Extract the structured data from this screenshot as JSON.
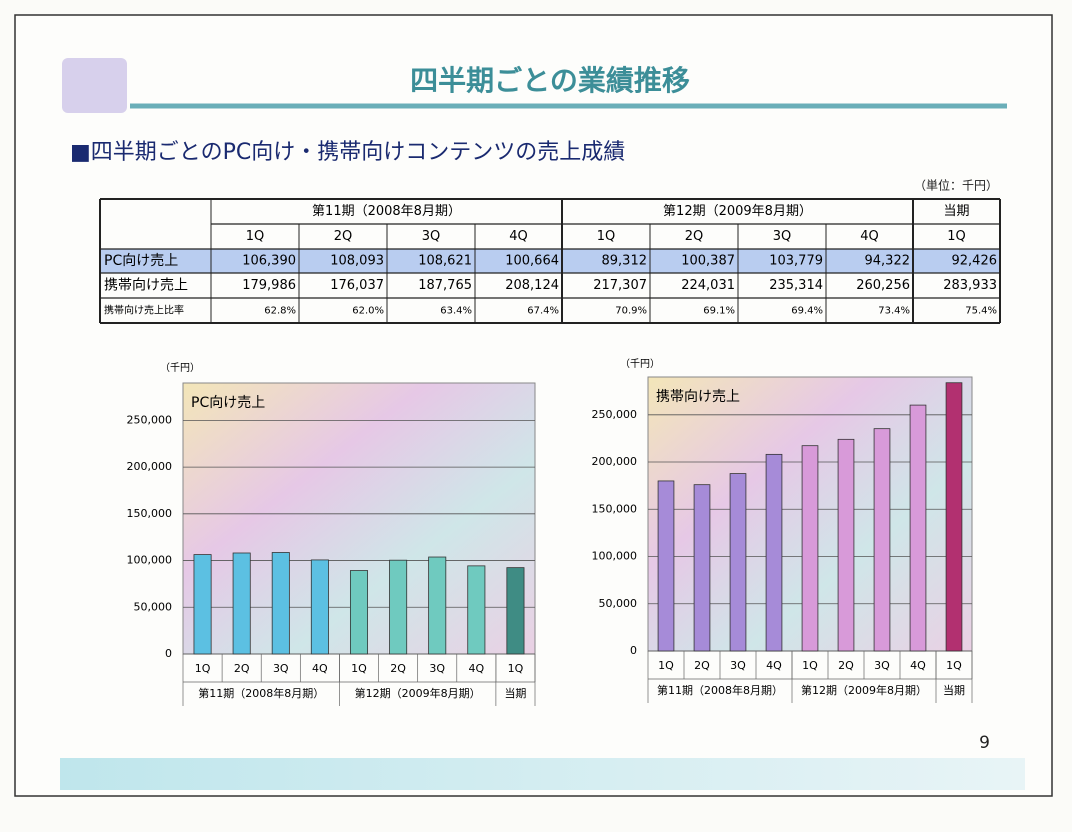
{
  "header": {
    "title": "四半期ごとの業績推移"
  },
  "section_title": "■四半期ごとのPC向け・携帯向けコンテンツの売上成績",
  "unit_note": "（単位：千円）",
  "table": {
    "period_headers": [
      "第11期（2008年8月期）",
      "第12期（2009年8月期）",
      "当期"
    ],
    "quarter_headers": [
      "1Q",
      "2Q",
      "3Q",
      "4Q",
      "1Q",
      "2Q",
      "3Q",
      "4Q",
      "1Q"
    ],
    "rows": [
      {
        "label": "PC向け売上",
        "cells": [
          "106,390",
          "108,093",
          "108,621",
          "100,664",
          "89,312",
          "100,387",
          "103,779",
          "94,322",
          "92,426"
        ]
      },
      {
        "label": "携帯向け売上",
        "cells": [
          "179,986",
          "176,037",
          "187,765",
          "208,124",
          "217,307",
          "224,031",
          "235,314",
          "260,256",
          "283,933"
        ]
      },
      {
        "label": "携帯向け売上比率",
        "cells": [
          "62.8%",
          "62.0%",
          "63.4%",
          "67.4%",
          "70.9%",
          "69.1%",
          "69.4%",
          "73.4%",
          "75.4%"
        ]
      }
    ]
  },
  "chart_data": [
    {
      "type": "bar",
      "title": "PC向け売上",
      "unit_label": "（千円）",
      "categories": [
        "1Q",
        "2Q",
        "3Q",
        "4Q",
        "1Q",
        "2Q",
        "3Q",
        "4Q",
        "1Q"
      ],
      "group_labels": [
        "第11期（2008年8月期）",
        "第12期（2009年8月期）",
        "当期"
      ],
      "values": [
        106390,
        108093,
        108621,
        100664,
        89312,
        100387,
        103779,
        94322,
        92426
      ],
      "colors": [
        "#5cc0e2",
        "#5cc0e2",
        "#5cc0e2",
        "#5cc0e2",
        "#6fcabf",
        "#6fcabf",
        "#6fcabf",
        "#6fcabf",
        "#3f8c84"
      ],
      "ylim": [
        0,
        290000
      ],
      "yticks": [
        0,
        {
          "value": 50000,
          "label": "50,000"
        },
        {
          "value": 100000,
          "label": "100,000"
        },
        {
          "value": 150000,
          "label": "150,000"
        },
        {
          "value": 200000,
          "label": "200,000"
        },
        {
          "value": 250000,
          "label": "250,000"
        }
      ],
      "grid": true
    },
    {
      "type": "bar",
      "title": "携帯向け売上",
      "unit_label": "（千円）",
      "categories": [
        "1Q",
        "2Q",
        "3Q",
        "4Q",
        "1Q",
        "2Q",
        "3Q",
        "4Q",
        "1Q"
      ],
      "group_labels": [
        "第11期（2008年8月期）",
        "第12期（2009年8月期）",
        "当期"
      ],
      "values": [
        179986,
        176037,
        187765,
        208124,
        217307,
        224031,
        235314,
        260256,
        283933
      ],
      "colors": [
        "#a68bd8",
        "#a68bd8",
        "#a68bd8",
        "#a68bd8",
        "#d89ad9",
        "#d89ad9",
        "#d89ad9",
        "#d89ad9",
        "#b23070"
      ],
      "ylim": [
        0,
        290000
      ],
      "yticks": [
        0,
        {
          "value": 50000,
          "label": "50,000"
        },
        {
          "value": 100000,
          "label": "100,000"
        },
        {
          "value": 150000,
          "label": "150,000"
        },
        {
          "value": 200000,
          "label": "200,000"
        },
        {
          "value": 250000,
          "label": "250,000"
        }
      ],
      "grid": true
    }
  ],
  "page_number": "9"
}
